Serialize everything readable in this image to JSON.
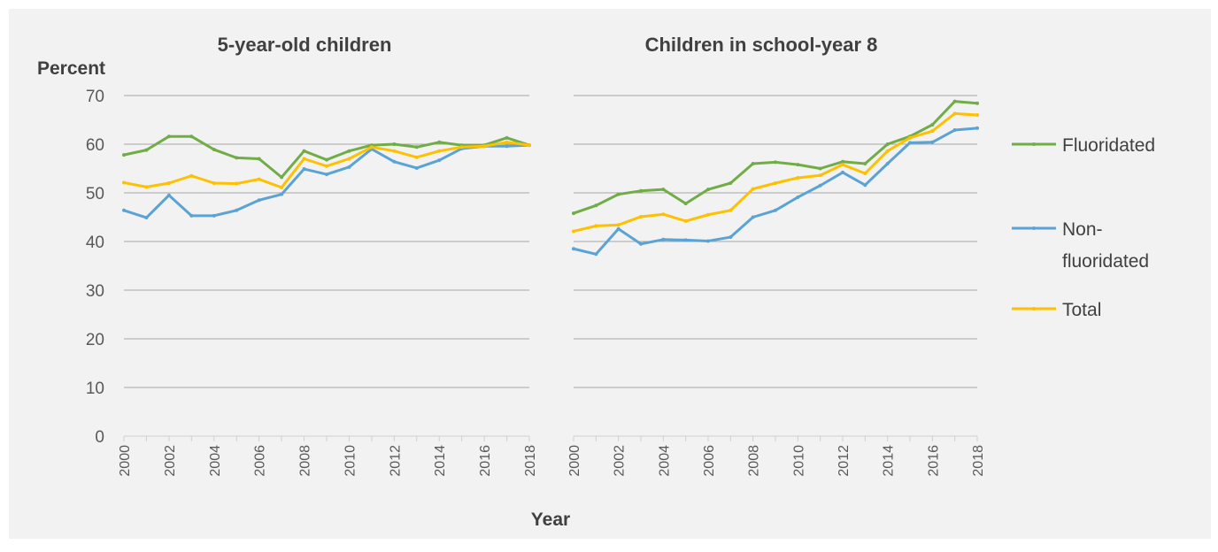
{
  "chart_data": {
    "type": "line",
    "ylabel": "Percent",
    "xlabel": "Year",
    "ylim": [
      0,
      70
    ],
    "yticks": [
      "0",
      "10",
      "20",
      "30",
      "40",
      "50",
      "60",
      "70"
    ],
    "x": [
      2000,
      2001,
      2002,
      2003,
      2004,
      2005,
      2006,
      2007,
      2008,
      2009,
      2010,
      2011,
      2012,
      2013,
      2014,
      2015,
      2016,
      2017,
      2018
    ],
    "xtick_labels": [
      "2000",
      "2002",
      "2004",
      "2006",
      "2008",
      "2010",
      "2012",
      "2014",
      "2016",
      "2018"
    ],
    "grid": "horizontal",
    "legend": {
      "position": "right",
      "items": [
        {
          "key": "fluoridated",
          "label": "Fluoridated",
          "color": "#70ad47"
        },
        {
          "key": "non",
          "label": "Non-fluoridated",
          "label_lines": [
            "Non-",
            "fluoridated"
          ],
          "color": "#5ba3d4"
        },
        {
          "key": "total",
          "label": "Total",
          "color": "#ffc000"
        }
      ]
    },
    "panels": [
      {
        "title": "5-year-old children",
        "series": [
          {
            "name": "Fluoridated",
            "key": "fluoridated",
            "values": [
              57.8,
              58.8,
              61.6,
              61.6,
              58.9,
              57.2,
              57.0,
              53.2,
              58.6,
              56.8,
              58.6,
              59.8,
              60.0,
              59.4,
              60.4,
              59.8,
              59.8,
              61.3,
              59.8
            ]
          },
          {
            "name": "Non-fluoridated",
            "key": "non",
            "values": [
              46.4,
              44.9,
              49.5,
              45.3,
              45.3,
              46.4,
              48.5,
              49.7,
              54.9,
              53.8,
              55.3,
              59.0,
              56.4,
              55.1,
              56.7,
              59.1,
              59.6,
              59.6,
              59.8
            ]
          },
          {
            "name": "Total",
            "key": "total",
            "values": [
              52.1,
              51.2,
              52.0,
              53.5,
              52.0,
              51.9,
              52.8,
              51.1,
              57.0,
              55.5,
              57.0,
              59.4,
              58.6,
              57.3,
              58.6,
              59.4,
              59.6,
              60.4,
              59.8
            ]
          }
        ]
      },
      {
        "title": "Children in school-year 8",
        "series": [
          {
            "name": "Fluoridated",
            "key": "fluoridated",
            "values": [
              45.8,
              47.4,
              49.7,
              50.4,
              50.7,
              47.8,
              50.7,
              52.0,
              56.0,
              56.3,
              55.8,
              55.0,
              56.4,
              56.0,
              60.0,
              61.6,
              64.0,
              68.8,
              68.4
            ]
          },
          {
            "name": "Non-fluoridated",
            "key": "non",
            "values": [
              38.5,
              37.4,
              42.6,
              39.5,
              40.4,
              40.3,
              40.1,
              40.9,
              45.0,
              46.4,
              49.1,
              51.5,
              54.2,
              51.6,
              56.0,
              60.3,
              60.4,
              62.9,
              63.3
            ]
          },
          {
            "name": "Total",
            "key": "total",
            "values": [
              42.1,
              43.2,
              43.4,
              45.1,
              45.6,
              44.2,
              45.5,
              46.4,
              50.8,
              52.0,
              53.1,
              53.6,
              55.8,
              54.0,
              58.6,
              61.3,
              62.7,
              66.3,
              66.0
            ]
          }
        ]
      }
    ]
  }
}
